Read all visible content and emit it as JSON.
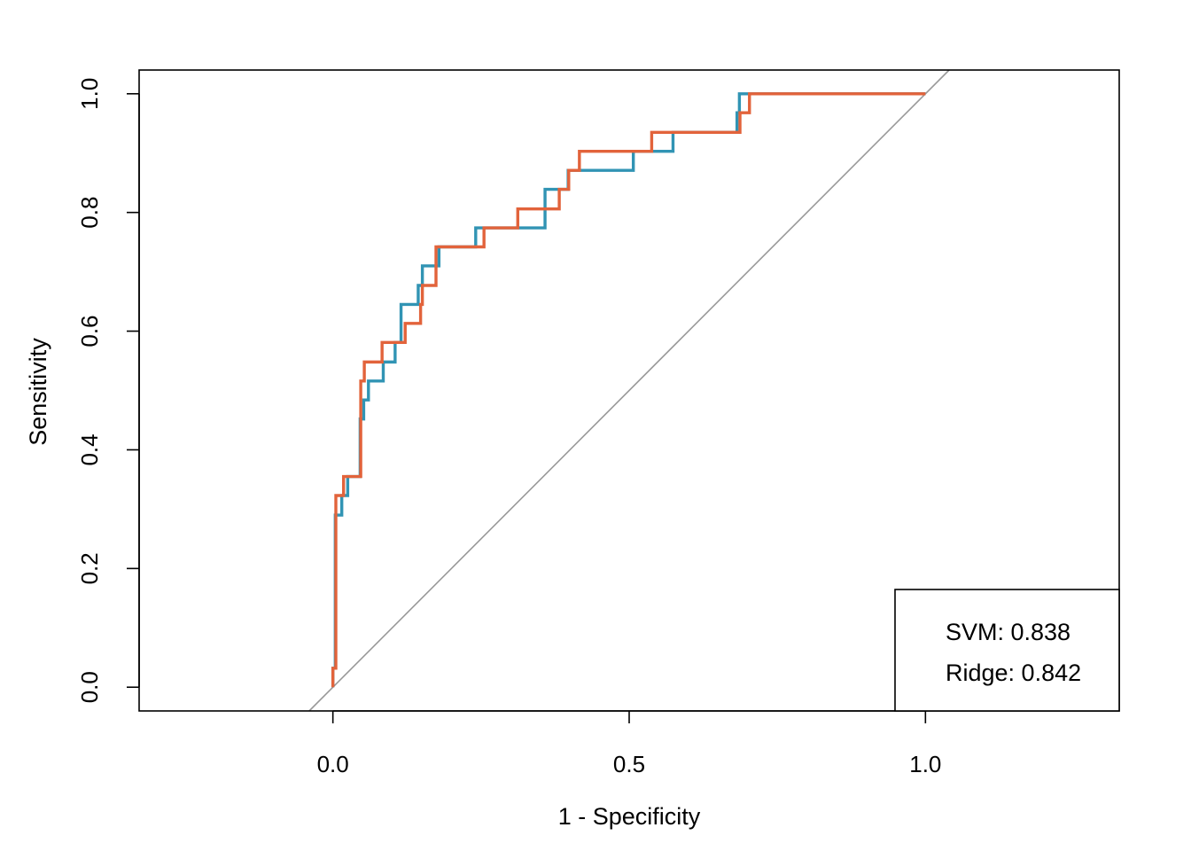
{
  "chart_data": {
    "type": "line",
    "title": "",
    "xlabel": "1 - Specificity",
    "ylabel": "Sensitivity",
    "xlim": [
      -0.327,
      1.327
    ],
    "ylim": [
      -0.04,
      1.04
    ],
    "x_ticks": [
      "0.0",
      "0.5",
      "1.0"
    ],
    "y_ticks": [
      "0.0",
      "0.2",
      "0.4",
      "0.6",
      "0.8",
      "1.0"
    ],
    "grid": false,
    "legend_position": "bottom-right",
    "legend": [
      "SVM: 0.838",
      "Ridge: 0.842"
    ],
    "reference_line": {
      "from": [
        0,
        0
      ],
      "to": [
        1,
        1
      ],
      "color": "#999999"
    },
    "series": [
      {
        "color": "#3194b4",
        "x": [
          0,
          0,
          0.004,
          0.004,
          0.006,
          0.006,
          0.015,
          0.015,
          0.025,
          0.025,
          0.046,
          0.046,
          0.052,
          0.052,
          0.06,
          0.06,
          0.085,
          0.085,
          0.105,
          0.105,
          0.115,
          0.115,
          0.144,
          0.144,
          0.151,
          0.151,
          0.179,
          0.179,
          0.241,
          0.241,
          0.358,
          0.358,
          0.397,
          0.397,
          0.415,
          0.415,
          0.507,
          0.507,
          0.574,
          0.574,
          0.682,
          0.682,
          0.686,
          0.686,
          1.0
        ],
        "y": [
          0,
          0.032,
          0.032,
          0.29,
          0.29,
          0.29,
          0.29,
          0.323,
          0.323,
          0.355,
          0.355,
          0.452,
          0.452,
          0.484,
          0.484,
          0.516,
          0.516,
          0.548,
          0.548,
          0.581,
          0.581,
          0.645,
          0.645,
          0.677,
          0.677,
          0.71,
          0.71,
          0.742,
          0.742,
          0.774,
          0.774,
          0.839,
          0.839,
          0.871,
          0.871,
          0.871,
          0.871,
          0.903,
          0.903,
          0.935,
          0.935,
          0.968,
          0.968,
          1.0,
          1.0
        ]
      },
      {
        "color": "#e2633b",
        "x": [
          0,
          0,
          0.005,
          0.005,
          0.018,
          0.018,
          0.047,
          0.047,
          0.053,
          0.053,
          0.083,
          0.083,
          0.122,
          0.122,
          0.148,
          0.148,
          0.151,
          0.151,
          0.174,
          0.174,
          0.255,
          0.255,
          0.312,
          0.312,
          0.382,
          0.382,
          0.398,
          0.398,
          0.416,
          0.416,
          0.538,
          0.538,
          0.687,
          0.687,
          0.703,
          0.703,
          1.0
        ],
        "y": [
          0,
          0.032,
          0.032,
          0.323,
          0.323,
          0.355,
          0.355,
          0.516,
          0.516,
          0.548,
          0.548,
          0.581,
          0.581,
          0.613,
          0.613,
          0.645,
          0.645,
          0.677,
          0.677,
          0.742,
          0.742,
          0.774,
          0.774,
          0.806,
          0.806,
          0.839,
          0.839,
          0.871,
          0.871,
          0.903,
          0.903,
          0.935,
          0.935,
          0.968,
          0.968,
          1.0,
          1.0
        ]
      }
    ]
  }
}
